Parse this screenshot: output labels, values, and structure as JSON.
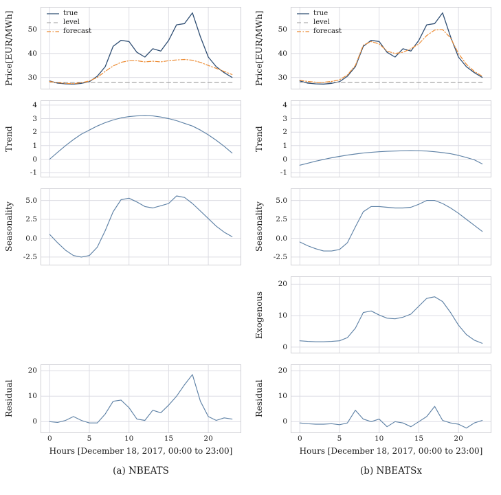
{
  "chart_data": {
    "type": "line",
    "x": [
      0,
      1,
      2,
      3,
      4,
      5,
      6,
      7,
      8,
      9,
      10,
      11,
      12,
      13,
      14,
      15,
      16,
      17,
      18,
      19,
      20,
      21,
      22,
      23
    ],
    "xticks": [
      0,
      5,
      10,
      15,
      20
    ],
    "xlim": [
      -1.15,
      24.15
    ],
    "grid": true,
    "legend_position": "upper-left",
    "series_styles": {
      "true_line": {
        "color": "#2e4d72",
        "width": 1.3,
        "dash": ""
      },
      "level": {
        "color": "#9b9b9b",
        "width": 1.1,
        "dash": "6 4"
      },
      "forecast": {
        "color": "#ec8b33",
        "width": 1.2,
        "dash": "6 2.5 1.5 2.5"
      },
      "component": {
        "color": "#5f82a6",
        "width": 1.15,
        "dash": ""
      }
    },
    "columns": [
      {
        "id": "nbeats",
        "caption": "(a) NBEATS",
        "xlabel": "Hours [December 18, 2017, 00:00 to 23:00]",
        "panels": [
          {
            "id": "price",
            "row": 0,
            "ylabel": "Price[EUR/MWh]",
            "ylim": [
              25,
              59.5
            ],
            "yticks": [
              30,
              40,
              50
            ],
            "ytick_labels": [
              "30",
              "40",
              "50"
            ],
            "legend": [
              "true",
              "level",
              "forecast"
            ],
            "series": [
              {
                "name": "true",
                "style": "true_line",
                "values": [
                  28.5,
                  27.6,
                  27.3,
                  27.2,
                  27.5,
                  28.2,
                  30.5,
                  34.5,
                  43,
                  45.5,
                  45,
                  40.5,
                  38.5,
                  42,
                  41,
                  45.5,
                  52,
                  52.5,
                  57,
                  47,
                  38.5,
                  34.5,
                  32,
                  30
                ]
              },
              {
                "name": "level",
                "style": "level",
                "constant": 28
              },
              {
                "name": "forecast",
                "style": "forecast",
                "values": [
                  28.3,
                  27.8,
                  27.5,
                  27.4,
                  27.8,
                  28.5,
                  30,
                  32.5,
                  34.8,
                  36.3,
                  37,
                  37,
                  36.5,
                  36.8,
                  36.5,
                  37,
                  37.3,
                  37.5,
                  37.2,
                  36.3,
                  35,
                  33.8,
                  32.5,
                  31.2
                ]
              }
            ]
          },
          {
            "id": "trend",
            "row": 1,
            "ylabel": "Trend",
            "ylim": [
              -1.35,
              4.35
            ],
            "yticks": [
              -1,
              0,
              1,
              2,
              3,
              4
            ],
            "ytick_labels": [
              "-1",
              "0",
              "1",
              "2",
              "3",
              "4"
            ],
            "series": [
              {
                "name": "trend",
                "style": "component",
                "values": [
                  0,
                  0.5,
                  1,
                  1.45,
                  1.85,
                  2.15,
                  2.45,
                  2.7,
                  2.9,
                  3.05,
                  3.15,
                  3.2,
                  3.22,
                  3.2,
                  3.12,
                  3,
                  2.85,
                  2.65,
                  2.45,
                  2.15,
                  1.8,
                  1.4,
                  0.95,
                  0.45
                ]
              }
            ]
          },
          {
            "id": "seasonality",
            "row": 2,
            "ylabel": "Seasonality",
            "ylim": [
              -3.6,
              6.6
            ],
            "yticks": [
              -2.5,
              0,
              2.5,
              5
            ],
            "ytick_labels": [
              "-2.5",
              "0.0",
              "2.5",
              "5.0"
            ],
            "series": [
              {
                "name": "seasonality",
                "style": "component",
                "values": [
                  0.5,
                  -0.6,
                  -1.6,
                  -2.3,
                  -2.5,
                  -2.3,
                  -1.2,
                  1,
                  3.5,
                  5.1,
                  5.3,
                  4.8,
                  4.2,
                  4,
                  4.3,
                  4.6,
                  5.6,
                  5.4,
                  4.6,
                  3.6,
                  2.6,
                  1.6,
                  0.8,
                  0.2
                ]
              }
            ]
          },
          {
            "id": "residual",
            "row": 4,
            "ylabel": "Residual",
            "ylim": [
              -4.5,
              22.5
            ],
            "yticks": [
              0,
              10,
              20
            ],
            "ytick_labels": [
              "0",
              "10",
              "20"
            ],
            "series": [
              {
                "name": "residual",
                "style": "component",
                "values": [
                  0,
                  -0.3,
                  0.5,
                  2,
                  0.5,
                  -0.5,
                  -0.5,
                  3,
                  8,
                  8.5,
                  5.5,
                  1,
                  0.5,
                  4.5,
                  3.5,
                  6.5,
                  10,
                  14.5,
                  18.5,
                  8,
                  2,
                  0.5,
                  1.5,
                  1
                ]
              }
            ]
          }
        ]
      },
      {
        "id": "nbeatsx",
        "caption": "(b) NBEATSx",
        "xlabel": "Hours [December 18, 2017, 00:00 to 23:00]",
        "panels": [
          {
            "id": "price",
            "row": 0,
            "ylabel": "Price[EUR/MWh]",
            "ylim": [
              25,
              59.5
            ],
            "yticks": [
              30,
              40,
              50
            ],
            "ytick_labels": [
              "30",
              "40",
              "50"
            ],
            "legend": [
              "true",
              "level",
              "forecast"
            ],
            "series": [
              {
                "name": "true",
                "style": "true_line",
                "values": [
                  28.5,
                  27.6,
                  27.3,
                  27.2,
                  27.5,
                  28.2,
                  30.5,
                  34.5,
                  43,
                  45.5,
                  45,
                  40.5,
                  38.5,
                  42,
                  41,
                  45.5,
                  52,
                  52.5,
                  57,
                  47,
                  38.5,
                  34.5,
                  32,
                  30
                ]
              },
              {
                "name": "level",
                "style": "level",
                "constant": 28
              },
              {
                "name": "forecast",
                "style": "forecast",
                "values": [
                  28.8,
                  28.3,
                  28,
                  28,
                  28.3,
                  29,
                  31,
                  35,
                  43.5,
                  45,
                  44,
                  41,
                  40,
                  40.5,
                  42,
                  44,
                  47.5,
                  49.8,
                  50,
                  46.5,
                  40,
                  35.5,
                  32.5,
                  30.5
                ]
              }
            ]
          },
          {
            "id": "trend",
            "row": 1,
            "ylabel": "Trend",
            "ylim": [
              -1.35,
              4.35
            ],
            "yticks": [
              -1,
              0,
              1,
              2,
              3,
              4
            ],
            "ytick_labels": [
              "-1",
              "0",
              "1",
              "2",
              "3",
              "4"
            ],
            "series": [
              {
                "name": "trend",
                "style": "component",
                "values": [
                  -0.45,
                  -0.3,
                  -0.15,
                  -0.02,
                  0.1,
                  0.2,
                  0.3,
                  0.38,
                  0.45,
                  0.5,
                  0.55,
                  0.58,
                  0.6,
                  0.62,
                  0.63,
                  0.62,
                  0.6,
                  0.55,
                  0.48,
                  0.4,
                  0.28,
                  0.12,
                  -0.05,
                  -0.35
                ]
              }
            ]
          },
          {
            "id": "seasonality",
            "row": 2,
            "ylabel": "Seasonality",
            "ylim": [
              -3.6,
              6.6
            ],
            "yticks": [
              -2.5,
              0,
              2.5,
              5
            ],
            "ytick_labels": [
              "-2.5",
              "0.0",
              "2.5",
              "5.0"
            ],
            "series": [
              {
                "name": "seasonality",
                "style": "component",
                "values": [
                  -0.5,
                  -1,
                  -1.4,
                  -1.7,
                  -1.7,
                  -1.5,
                  -0.6,
                  1.5,
                  3.5,
                  4.2,
                  4.2,
                  4.1,
                  4,
                  4,
                  4.1,
                  4.5,
                  5,
                  5,
                  4.6,
                  4,
                  3.3,
                  2.5,
                  1.7,
                  0.9
                ]
              }
            ]
          },
          {
            "id": "exogenous",
            "row": 3,
            "ylabel": "Exogenous",
            "ylim": [
              -2,
              22.5
            ],
            "yticks": [
              0,
              10,
              20
            ],
            "ytick_labels": [
              "0",
              "10",
              "20"
            ],
            "series": [
              {
                "name": "exogenous",
                "style": "component",
                "values": [
                  2,
                  1.8,
                  1.7,
                  1.7,
                  1.8,
                  2,
                  3,
                  6,
                  11,
                  11.5,
                  10.2,
                  9.2,
                  9,
                  9.5,
                  10.5,
                  13,
                  15.5,
                  16,
                  14.5,
                  11,
                  7,
                  4,
                  2.2,
                  1.2
                ]
              }
            ]
          },
          {
            "id": "residual",
            "row": 4,
            "ylabel": "Residual",
            "ylim": [
              -4.5,
              22.5
            ],
            "yticks": [
              0,
              10,
              20
            ],
            "ytick_labels": [
              "0",
              "10",
              "20"
            ],
            "series": [
              {
                "name": "residual",
                "style": "component",
                "values": [
                  -0.5,
                  -0.8,
                  -1,
                  -1,
                  -0.8,
                  -1.2,
                  -0.5,
                  4.5,
                  1,
                  0,
                  1,
                  -2,
                  0,
                  -0.5,
                  -2,
                  0,
                  2,
                  6,
                  0.5,
                  -0.5,
                  -1,
                  -2.5,
                  -0.5,
                  0.5
                ]
              }
            ]
          }
        ]
      }
    ]
  }
}
